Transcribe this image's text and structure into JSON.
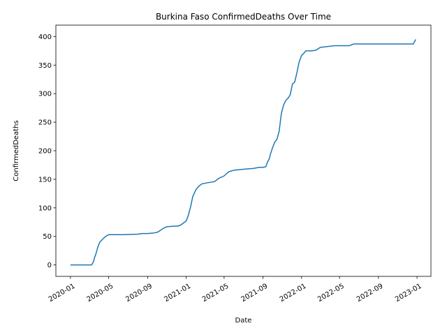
{
  "chart_data": {
    "type": "line",
    "title": "Burkina Faso  ConfirmedDeaths Over Time",
    "xlabel": "Date",
    "ylabel": "ConfirmedDeaths",
    "xlim": [
      "2019-11-16",
      "2023-02-14"
    ],
    "ylim": [
      -20,
      420
    ],
    "grid": false,
    "x_ticks": [
      "2020-01",
      "2020-05",
      "2020-09",
      "2021-01",
      "2021-05",
      "2021-09",
      "2022-01",
      "2022-05",
      "2022-09",
      "2023-01"
    ],
    "y_ticks": [
      0,
      50,
      100,
      150,
      200,
      250,
      300,
      350,
      400
    ],
    "series": [
      {
        "color": "#1f77b4",
        "x": [
          "2020-01-01",
          "2020-03-08",
          "2020-03-10",
          "2020-03-14",
          "2020-03-18",
          "2020-03-22",
          "2020-03-26",
          "2020-03-30",
          "2020-04-03",
          "2020-04-10",
          "2020-04-17",
          "2020-04-24",
          "2020-05-01",
          "2020-05-15",
          "2020-06-15",
          "2020-08-01",
          "2020-08-15",
          "2020-09-01",
          "2020-09-20",
          "2020-10-01",
          "2020-10-10",
          "2020-10-20",
          "2020-11-01",
          "2020-11-25",
          "2020-12-05",
          "2020-12-15",
          "2021-01-01",
          "2021-01-08",
          "2021-01-15",
          "2021-01-22",
          "2021-02-01",
          "2021-02-10",
          "2021-02-20",
          "2021-03-10",
          "2021-04-01",
          "2021-04-15",
          "2021-05-01",
          "2021-05-15",
          "2021-06-01",
          "2021-06-20",
          "2021-07-10",
          "2021-08-01",
          "2021-08-20",
          "2021-09-01",
          "2021-09-10",
          "2021-09-15",
          "2021-09-20",
          "2021-09-25",
          "2021-10-01",
          "2021-10-08",
          "2021-10-15",
          "2021-10-22",
          "2021-10-29",
          "2021-11-05",
          "2021-11-12",
          "2021-11-19",
          "2021-11-26",
          "2021-12-03",
          "2021-12-10",
          "2021-12-17",
          "2021-12-24",
          "2022-01-01",
          "2022-01-07",
          "2022-01-14",
          "2022-01-21",
          "2022-02-01",
          "2022-02-15",
          "2022-03-01",
          "2022-03-15",
          "2022-04-01",
          "2022-04-15",
          "2022-05-01",
          "2022-06-01",
          "2022-06-15",
          "2022-07-01",
          "2022-08-01",
          "2022-09-01",
          "2022-10-01",
          "2022-11-01",
          "2022-12-01",
          "2022-12-20",
          "2022-12-28"
        ],
        "y": [
          0,
          0,
          2,
          6,
          14,
          20,
          28,
          35,
          40,
          44,
          48,
          51,
          53,
          53,
          53,
          54,
          55,
          55,
          56,
          57,
          60,
          64,
          67,
          68,
          68,
          70,
          77,
          87,
          102,
          120,
          132,
          138,
          142,
          144,
          146,
          152,
          156,
          163,
          166,
          167,
          168,
          169,
          171,
          171,
          172,
          180,
          185,
          195,
          205,
          215,
          220,
          234,
          265,
          280,
          288,
          292,
          298,
          317,
          320,
          336,
          355,
          367,
          370,
          375,
          375,
          375,
          376,
          381,
          382,
          383,
          384,
          384,
          384,
          387,
          387,
          387,
          387,
          387,
          387,
          387,
          387,
          395
        ]
      }
    ]
  }
}
